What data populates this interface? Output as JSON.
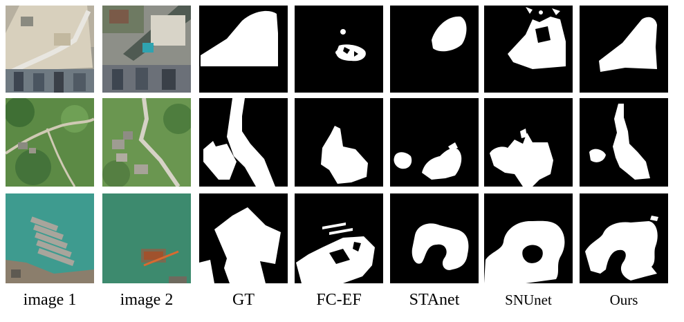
{
  "figure": {
    "columns": [
      {
        "key": "image1",
        "label": "image 1"
      },
      {
        "key": "image2",
        "label": "image 2"
      },
      {
        "key": "gt",
        "label": "GT"
      },
      {
        "key": "fcef",
        "label": "FC-EF"
      },
      {
        "key": "stanet",
        "label": "STAnet"
      },
      {
        "key": "snunet",
        "label": "SNUnet"
      },
      {
        "key": "ours",
        "label": "Ours"
      }
    ],
    "rows": 3,
    "colors": {
      "background": "#ffffff",
      "mask_background": "#000000",
      "mask_foreground": "#ffffff",
      "water": "#3f9a8c",
      "vegetation": "#5f8f4a",
      "urban": "#a7a49a"
    }
  }
}
